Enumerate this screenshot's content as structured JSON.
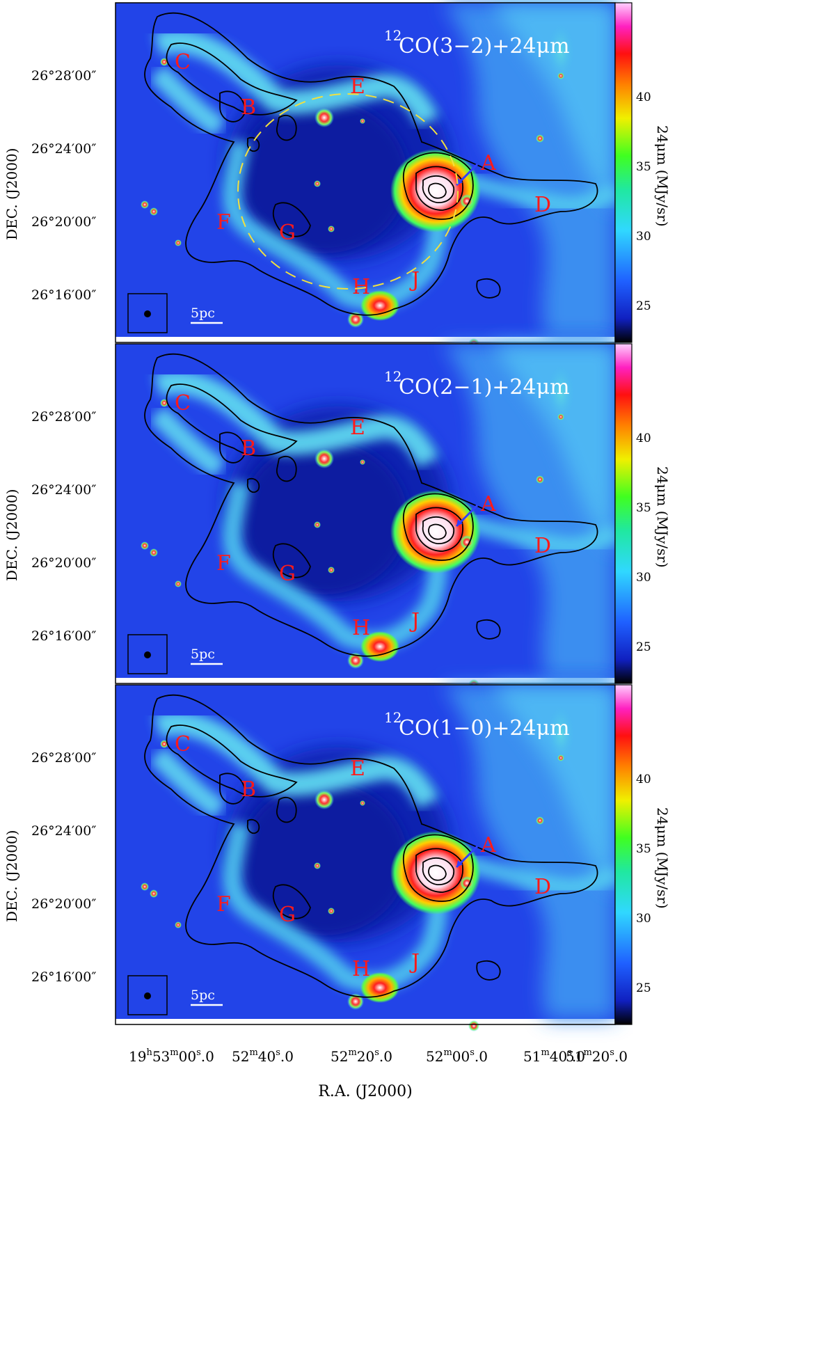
{
  "panels": [
    {
      "title_sup": "12",
      "title_main": "CO(3−2)+24μm",
      "ytick_labels": [
        "26°28′00″",
        "26°24′00″",
        "26°20′00″",
        "26°16′00″"
      ],
      "ylabel": "DEC. (J2000)",
      "colorbar_ticks": [
        "40",
        "35",
        "30",
        "25"
      ],
      "colorbar_label": "24μm (MJy/sr)",
      "scalebar_label": "5pc",
      "show_ellipse": true
    },
    {
      "title_sup": "12",
      "title_main": "CO(2−1)+24μm",
      "ytick_labels": [
        "26°28′00″",
        "26°24′00″",
        "26°20′00″",
        "26°16′00″"
      ],
      "ylabel": "DEC. (J2000)",
      "colorbar_ticks": [
        "40",
        "35",
        "30",
        "25"
      ],
      "colorbar_label": "24μm (MJy/sr)",
      "scalebar_label": "5pc",
      "show_ellipse": false
    },
    {
      "title_sup": "12",
      "title_main": "CO(1−0)+24μm",
      "ytick_labels": [
        "26°28′00″",
        "26°24′00″",
        "26°20′00″",
        "26°16′00″"
      ],
      "ylabel": "DEC. (J2000)",
      "colorbar_ticks": [
        "40",
        "35",
        "30",
        "25"
      ],
      "colorbar_label": "24μm (MJy/sr)",
      "scalebar_label": "5pc",
      "show_ellipse": false
    }
  ],
  "region_labels": [
    "A",
    "B",
    "C",
    "D",
    "E",
    "F",
    "G",
    "H",
    "J"
  ],
  "xtick_labels": [
    {
      "h": "19",
      "hs": "h",
      "m": "53",
      "ms": "m",
      "s": "00",
      "ss": "s",
      "f": "0"
    },
    {
      "m": "52",
      "ms": "m",
      "s": "40",
      "ss": "s",
      "f": "0"
    },
    {
      "m": "52",
      "ms": "m",
      "s": "20",
      "ss": "s",
      "f": "0"
    },
    {
      "m": "52",
      "ms": "m",
      "s": "00",
      "ss": "s",
      "f": "0"
    },
    {
      "m": "51",
      "ms": "m",
      "s": "40",
      "ss": "s",
      "f": "0"
    },
    {
      "m": "51",
      "ms": "m",
      "s": "20",
      "ss": "s",
      "f": "0"
    }
  ],
  "xlabel": "R.A. (J2000)",
  "colors": {
    "background_blue": "#1f3fe0",
    "cavity_blue": "#0d1fa6",
    "filament_cyan": "#5fd8f0",
    "hot_core": "#ff2a1a",
    "contour": "#000000",
    "label_red": "#ff1a1a",
    "ellipse": "#f0e040"
  }
}
